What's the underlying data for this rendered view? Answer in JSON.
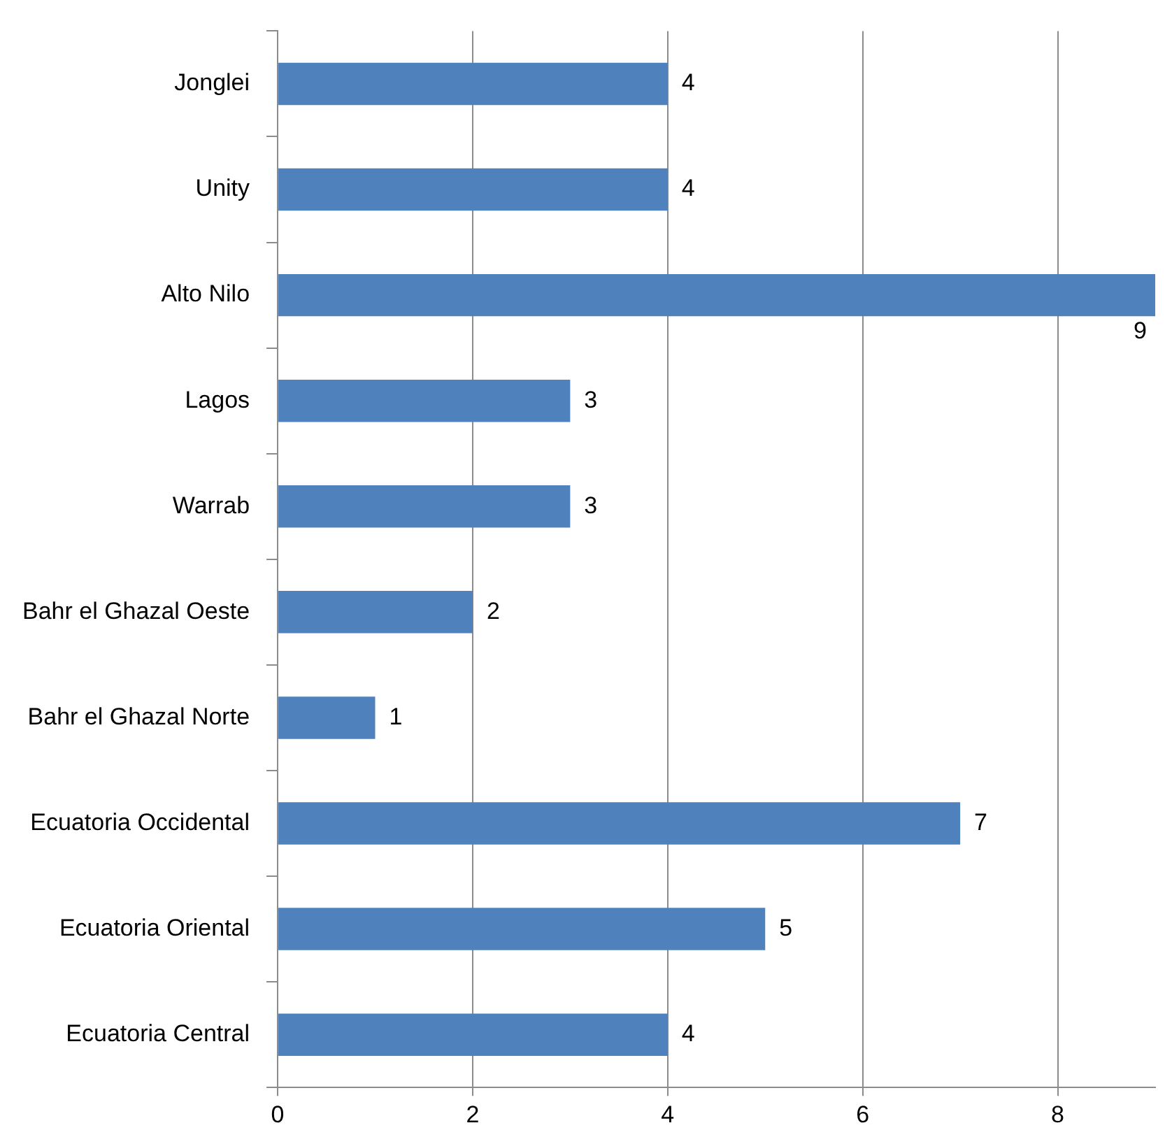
{
  "chart_data": {
    "type": "bar",
    "orientation": "horizontal",
    "categories": [
      "Jonglei",
      "Unity",
      "Alto Nilo",
      "Lagos",
      "Warrab",
      "Bahr el Ghazal Oeste",
      "Bahr el Ghazal Norte",
      "Ecuatoria Occidental",
      "Ecuatoria Oriental",
      "Ecuatoria Central"
    ],
    "values": [
      4,
      4,
      9,
      3,
      3,
      2,
      1,
      7,
      5,
      4
    ],
    "color": "#4f81bd",
    "xlim": [
      0,
      9
    ],
    "xticks": [
      0,
      2,
      4,
      6,
      8
    ],
    "grid": "x",
    "data_labels": true,
    "legend": false
  }
}
